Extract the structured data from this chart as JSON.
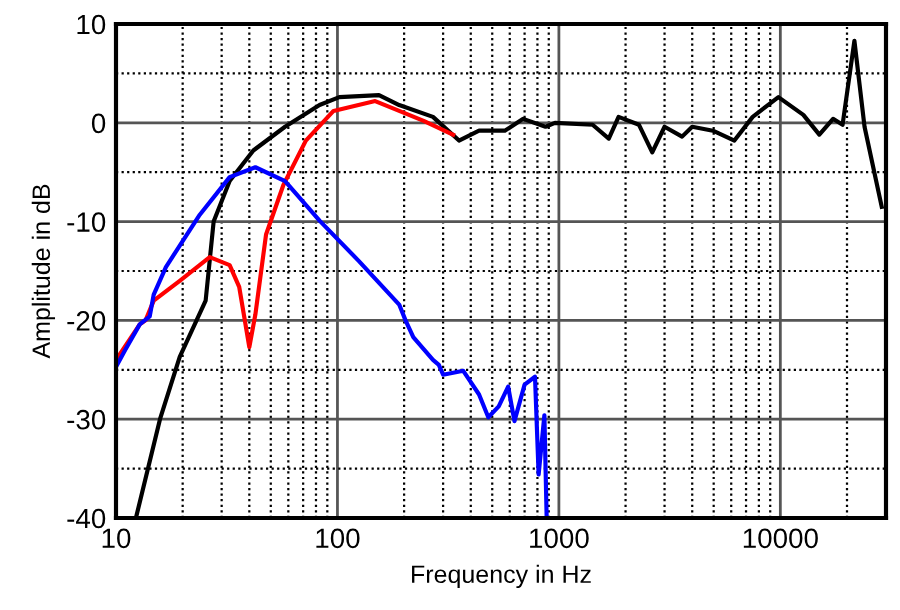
{
  "chart_data": {
    "type": "line",
    "xlabel": "Frequency in Hz",
    "ylabel": "Amplitude in dB",
    "log": "x",
    "xlim": [
      10,
      30000
    ],
    "ylim": [
      -40,
      10
    ],
    "xticks": [
      10,
      100,
      1000,
      10000
    ],
    "yticks": [
      -40,
      -30,
      -20,
      -10,
      0,
      10
    ],
    "grid": true,
    "legend": false,
    "marker": "none",
    "line_style": "solid",
    "series": [
      {
        "color": "#000000",
        "x": [
          12.3,
          15.8,
          19.4,
          25.4,
          27.6,
          32.6,
          41.7,
          58,
          83,
          102,
          154,
          190,
          270,
          354,
          436,
          570,
          690,
          870,
          960,
          1420,
          1680,
          1860,
          2300,
          2640,
          3000,
          3600,
          4000,
          4960,
          6200,
          7500,
          9800,
          12700,
          15000,
          17300,
          19100,
          21600,
          24000,
          28700
        ],
        "values": [
          -40,
          -30,
          -23.7,
          -18,
          -10,
          -5.9,
          -2.8,
          -0.4,
          1.8,
          2.6,
          2.8,
          1.8,
          0.6,
          -1.8,
          -0.8,
          -0.8,
          0.4,
          -0.4,
          0,
          -0.2,
          -1.6,
          0.6,
          -0.2,
          -3,
          -0.4,
          -1.4,
          -0.4,
          -0.8,
          -1.8,
          0.6,
          2.6,
          0.8,
          -1.2,
          0.4,
          -0.2,
          8.3,
          -0.4,
          -8.5
        ]
      },
      {
        "color": "#ff0000",
        "x": [
          10,
          12.8,
          13.6,
          14.8,
          19.4,
          26.5,
          32.6,
          36,
          40,
          42.6,
          47.6,
          57,
          72,
          96,
          148,
          190,
          245,
          333
        ],
        "values": [
          -24,
          -20.4,
          -20,
          -18,
          -16,
          -13.6,
          -14.4,
          -16.6,
          -22.7,
          -19.4,
          -11.3,
          -6.3,
          -1.8,
          1.2,
          2.2,
          1.2,
          0.2,
          -1.2
        ]
      },
      {
        "color": "#0000ff",
        "x": [
          10,
          11,
          12.8,
          14.2,
          14.8,
          16.8,
          23.9,
          32.6,
          42.6,
          58,
          83,
          125,
          190,
          203,
          220,
          270,
          287,
          300,
          370,
          436,
          480,
          535,
          590,
          630,
          700,
          780,
          810,
          860,
          880
        ],
        "values": [
          -24.7,
          -23,
          -20.4,
          -19.6,
          -17.4,
          -14.6,
          -9.3,
          -5.5,
          -4.5,
          -5.9,
          -9.9,
          -14,
          -18.4,
          -20,
          -21.7,
          -24,
          -24.5,
          -25.5,
          -25.1,
          -27.5,
          -29.8,
          -28.7,
          -26.7,
          -30.2,
          -26.5,
          -25.7,
          -35.6,
          -29.6,
          -39.7
        ]
      }
    ]
  }
}
